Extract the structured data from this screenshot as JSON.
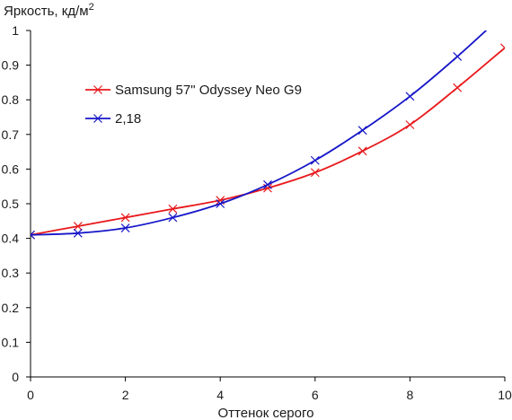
{
  "chart_data": {
    "type": "line",
    "ylabel": "Яркость, кд/м",
    "ylabel_superscript": "2",
    "xlabel": "Оттенок серого",
    "xlim": [
      0,
      10
    ],
    "ylim": [
      0,
      1
    ],
    "x_ticks": [
      "0",
      "2",
      "4",
      "6",
      "8",
      "10"
    ],
    "y_ticks": [
      "0",
      "0.1",
      "0.2",
      "0.3",
      "0.4",
      "0.5",
      "0.6",
      "0.7",
      "0.8",
      "0.9",
      "1"
    ],
    "grid": false,
    "legend_position": "upper-left",
    "series": [
      {
        "name": "Samsung 57\" Odyssey Neo G9",
        "color": "#e8191c",
        "marker": "x",
        "x": [
          0,
          1,
          2,
          3,
          4,
          5,
          6,
          7,
          8,
          9,
          10
        ],
        "y": [
          0.41,
          0.435,
          0.46,
          0.485,
          0.51,
          0.545,
          0.59,
          0.652,
          0.728,
          0.835,
          0.95
        ]
      },
      {
        "name": "2,18",
        "color": "#1616c8",
        "marker": "x",
        "x": [
          0,
          1,
          2,
          3,
          4,
          5,
          6,
          7,
          8,
          9,
          10
        ],
        "y": [
          0.41,
          0.415,
          0.43,
          0.46,
          0.5,
          0.555,
          0.625,
          0.712,
          0.81,
          0.925,
          1.05
        ]
      }
    ]
  }
}
